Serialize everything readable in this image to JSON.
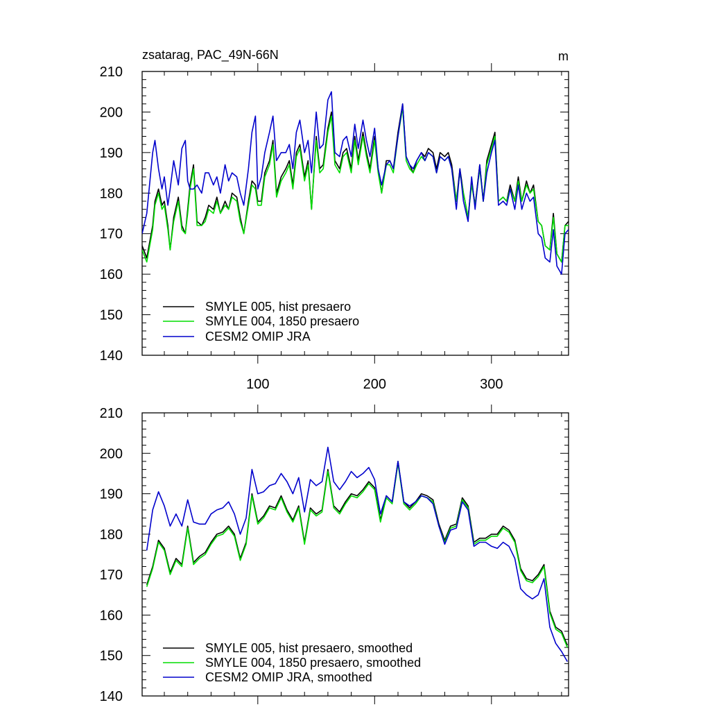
{
  "title": "zsatarag, PAC_49N-66N",
  "units": "m",
  "colors": {
    "hist": "#000000",
    "presaero1850": "#00dd00",
    "omip": "#0000cc"
  },
  "chart_data": [
    {
      "type": "line",
      "panel": "top",
      "title": "zsatarag, PAC_49N-66N",
      "units": "m",
      "xlim": [
        1,
        366
      ],
      "ylim": [
        140,
        210
      ],
      "x_ticks": [
        100,
        200,
        300
      ],
      "x_tick_labels": [
        "100",
        "200",
        "300"
      ],
      "y_ticks": [
        140,
        150,
        160,
        170,
        180,
        190,
        200,
        210
      ],
      "y_tick_labels": [
        "140",
        "150",
        "160",
        "170",
        "180",
        "190",
        "200",
        "210"
      ],
      "legend": [
        "SMYLE 005, hist presaero",
        "SMYLE 004, 1850 presaero",
        "CESM2 OMIP JRA"
      ],
      "legend_position": "bottom-left",
      "x": [
        1,
        5,
        10,
        12,
        15,
        18,
        20,
        23,
        25,
        28,
        32,
        35,
        38,
        40,
        42,
        45,
        48,
        52,
        55,
        58,
        62,
        65,
        68,
        72,
        75,
        78,
        82,
        85,
        88,
        92,
        95,
        98,
        100,
        103,
        106,
        110,
        113,
        116,
        120,
        124,
        127,
        130,
        133,
        136,
        140,
        143,
        146,
        150,
        153,
        156,
        160,
        163,
        166,
        170,
        173,
        176,
        180,
        183,
        186,
        190,
        193,
        196,
        200,
        203,
        206,
        210,
        213,
        216,
        220,
        224,
        227,
        230,
        233,
        236,
        240,
        243,
        246,
        250,
        253,
        256,
        260,
        263,
        266,
        270,
        273,
        276,
        280,
        283,
        286,
        290,
        293,
        296,
        300,
        303,
        306,
        310,
        313,
        316,
        320,
        323,
        326,
        330,
        333,
        336,
        340,
        343,
        346,
        350,
        353,
        356,
        360,
        363,
        366
      ],
      "series": [
        {
          "name": "SMYLE 005, hist presaero",
          "color": "#000000",
          "values": [
            167,
            164,
            172,
            178,
            181,
            177,
            178,
            172,
            166,
            174,
            179,
            172,
            170,
            176,
            182,
            187,
            173,
            172,
            174,
            177,
            176,
            179,
            175,
            178,
            176,
            180,
            179,
            174,
            170,
            178,
            183,
            182,
            178,
            178,
            185,
            188,
            193,
            180,
            184,
            186,
            188,
            182,
            190,
            192,
            184,
            188,
            176,
            194,
            186,
            187,
            196,
            200,
            188,
            186,
            190,
            191,
            186,
            194,
            188,
            195,
            190,
            186,
            194,
            186,
            180,
            188,
            188,
            186,
            195,
            202,
            189,
            187,
            185,
            188,
            190,
            189,
            191,
            190,
            186,
            190,
            189,
            190,
            187,
            178,
            186,
            180,
            174,
            183,
            177,
            187,
            178,
            188,
            192,
            195,
            178,
            179,
            178,
            182,
            178,
            184,
            178,
            183,
            180,
            182,
            173,
            172,
            167,
            166,
            175,
            165,
            163,
            172,
            173
          ]
        },
        {
          "name": "SMYLE 004, 1850 presaero",
          "color": "#00dd00",
          "values": [
            166,
            163,
            171,
            177,
            180,
            176,
            177,
            171,
            166,
            173,
            178,
            171,
            170,
            175,
            181,
            186,
            172,
            172,
            173,
            176,
            175,
            178,
            175,
            177,
            176,
            179,
            178,
            173,
            170,
            177,
            182,
            181,
            177,
            177,
            184,
            187,
            192,
            179,
            183,
            185,
            187,
            181,
            189,
            191,
            183,
            187,
            176,
            193,
            185,
            186,
            195,
            199,
            187,
            185,
            189,
            190,
            185,
            193,
            187,
            194,
            189,
            185,
            193,
            185,
            180,
            187,
            187,
            185,
            194,
            201,
            188,
            186,
            185,
            187,
            189,
            188,
            190,
            189,
            185,
            189,
            188,
            189,
            186,
            178,
            185,
            180,
            174,
            182,
            177,
            186,
            178,
            187,
            191,
            194,
            178,
            179,
            178,
            181,
            178,
            183,
            178,
            182,
            180,
            181,
            173,
            172,
            167,
            166,
            174,
            165,
            163,
            172,
            172
          ]
        },
        {
          "name": "CESM2 OMIP JRA",
          "color": "#0000cc",
          "values": [
            170,
            175,
            190,
            193,
            186,
            181,
            184,
            177,
            181,
            188,
            182,
            191,
            193,
            183,
            181,
            181,
            182,
            180,
            185,
            185,
            182,
            184,
            180,
            187,
            183,
            185,
            184,
            180,
            177,
            186,
            195,
            199,
            181,
            184,
            190,
            195,
            199,
            188,
            190,
            190,
            192,
            186,
            195,
            198,
            190,
            193,
            185,
            200,
            191,
            192,
            203,
            205,
            190,
            189,
            193,
            194,
            189,
            197,
            191,
            198,
            193,
            189,
            196,
            186,
            182,
            187,
            188,
            186,
            194,
            202,
            189,
            187,
            186,
            188,
            190,
            188,
            190,
            189,
            185,
            189,
            188,
            189,
            186,
            176,
            186,
            178,
            173,
            184,
            176,
            187,
            178,
            185,
            190,
            193,
            177,
            178,
            177,
            181,
            176,
            182,
            176,
            180,
            178,
            179,
            170,
            169,
            164,
            163,
            171,
            162,
            160,
            170,
            171
          ]
        }
      ]
    },
    {
      "type": "line",
      "panel": "bottom",
      "xlim": [
        1,
        366
      ],
      "ylim": [
        140,
        210
      ],
      "x_ticks": [
        100,
        200,
        300
      ],
      "y_ticks": [
        140,
        150,
        160,
        170,
        180,
        190,
        200,
        210
      ],
      "y_tick_labels": [
        "140",
        "150",
        "160",
        "170",
        "180",
        "190",
        "200",
        "210"
      ],
      "legend": [
        "SMYLE 005, hist presaero, smoothed",
        "SMYLE 004, 1850 presaero, smoothed",
        "CESM2 OMIP JRA, smoothed"
      ],
      "legend_position": "bottom-left",
      "x": [
        5,
        10,
        15,
        20,
        25,
        30,
        35,
        40,
        45,
        50,
        55,
        60,
        65,
        70,
        75,
        80,
        85,
        90,
        95,
        100,
        105,
        110,
        115,
        120,
        125,
        130,
        135,
        140,
        145,
        150,
        155,
        160,
        165,
        170,
        175,
        180,
        185,
        190,
        195,
        200,
        205,
        210,
        215,
        220,
        225,
        230,
        235,
        240,
        245,
        250,
        255,
        260,
        265,
        270,
        275,
        280,
        285,
        290,
        295,
        300,
        305,
        310,
        315,
        320,
        325,
        330,
        335,
        340,
        345,
        350,
        355,
        360,
        365
      ],
      "series": [
        {
          "name": "SMYLE 005, hist presaero, smoothed",
          "color": "#000000",
          "values": [
            167.5,
            172,
            178.5,
            176.5,
            170.5,
            174,
            172.5,
            182,
            173,
            174.5,
            175.5,
            178,
            180,
            180.5,
            182,
            180,
            174,
            178,
            190,
            183,
            184.5,
            187,
            186.5,
            189.5,
            186,
            183.5,
            187,
            178,
            186.5,
            185,
            186,
            196,
            187,
            185.5,
            188,
            190,
            189.5,
            191,
            193,
            191.5,
            183.5,
            189.5,
            188,
            198,
            188,
            186.5,
            188,
            190,
            189.5,
            188.5,
            182.5,
            178.5,
            182,
            182.5,
            189,
            187,
            178,
            179,
            179,
            180,
            180,
            182,
            181,
            178.5,
            171.5,
            169,
            168.5,
            170,
            172.5,
            161,
            157,
            156,
            152.5
          ]
        },
        {
          "name": "SMYLE 004, 1850 presaero, smoothed",
          "color": "#00dd00",
          "values": [
            167,
            171.5,
            178,
            176,
            170,
            173.5,
            172,
            181.5,
            172.5,
            174,
            175,
            177.5,
            179.5,
            180,
            181.5,
            179.5,
            173.5,
            177.5,
            189.5,
            182.5,
            184,
            186.5,
            186,
            189,
            185.5,
            183,
            186.5,
            177.5,
            186,
            184.5,
            185.5,
            195.5,
            186.5,
            185,
            187.5,
            189.5,
            189,
            190.5,
            192.5,
            191,
            183,
            189,
            187.5,
            197.5,
            187.5,
            186,
            187.5,
            189.5,
            189,
            188,
            182,
            178,
            181.5,
            182,
            188.5,
            186.5,
            177.5,
            178.5,
            178.5,
            179.5,
            179.5,
            181.5,
            180.5,
            178,
            171,
            168.5,
            168,
            169.5,
            172,
            160.5,
            156.5,
            155.5,
            152
          ]
        },
        {
          "name": "CESM2 OMIP JRA, smoothed",
          "color": "#0000cc",
          "values": [
            176,
            186,
            190.5,
            187,
            182,
            185,
            182,
            188.5,
            183,
            182.5,
            182.5,
            185,
            186,
            186.5,
            188,
            185,
            180,
            184,
            196,
            190,
            190.5,
            192,
            192.5,
            195,
            193,
            190,
            194,
            185.5,
            193.5,
            192,
            193,
            201.5,
            193,
            191,
            193,
            195.5,
            194,
            195,
            196.5,
            193.5,
            185,
            189.5,
            188,
            198,
            188,
            187,
            188,
            189.5,
            189,
            187.5,
            182,
            177.5,
            181,
            181.5,
            188,
            186,
            177,
            178,
            178,
            177,
            176.5,
            178,
            177,
            174,
            166.5,
            165,
            164,
            165,
            169,
            157,
            153,
            151,
            148.5
          ]
        }
      ]
    }
  ]
}
